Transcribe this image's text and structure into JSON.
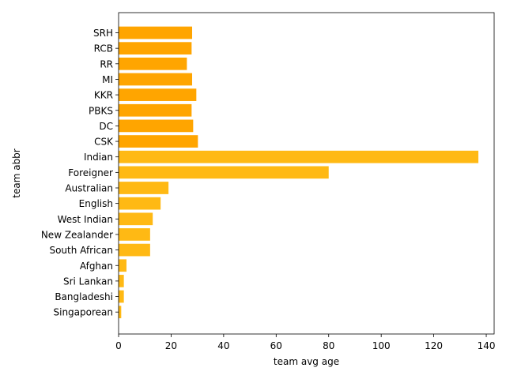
{
  "chart_data": {
    "type": "bar",
    "orientation": "horizontal",
    "xlabel": "team avg age",
    "ylabel": "team abbr",
    "xlim": [
      0,
      143
    ],
    "x_ticks": [
      0,
      20,
      40,
      60,
      80,
      100,
      120,
      140
    ],
    "grid": false,
    "series": [
      {
        "color": "#FFA500",
        "categories": [
          "SRH",
          "RCB",
          "RR",
          "MI",
          "KKR",
          "PBKS",
          "DC",
          "CSK"
        ],
        "values": [
          28.0,
          27.8,
          26.0,
          28.0,
          29.6,
          27.8,
          28.4,
          30.2
        ]
      },
      {
        "color": "#FFB914",
        "categories": [
          "Indian",
          "Foreigner",
          "Australian",
          "English",
          "West Indian",
          "New Zealander",
          "South African",
          "Afghan",
          "Sri Lankan",
          "Bangladeshi",
          "Singaporean"
        ],
        "values": [
          137,
          80,
          19,
          16,
          13,
          12,
          12,
          3,
          2,
          2,
          1
        ]
      }
    ]
  }
}
